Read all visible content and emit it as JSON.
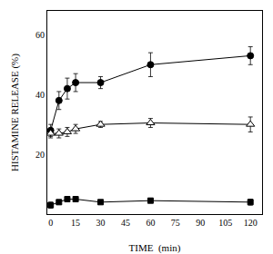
{
  "chart_data": {
    "type": "line",
    "xlabel": "TIME  (min)",
    "ylabel": "HISTAMINE RELEASE (%)",
    "x": [
      0,
      5,
      10,
      15,
      30,
      60,
      120
    ],
    "series": [
      {
        "color": "#000000",
        "marker": "circle",
        "values": [
          28,
          38,
          42,
          44,
          44,
          50,
          53
        ],
        "errors": [
          2,
          3,
          3.5,
          3,
          2,
          4,
          3
        ]
      },
      {
        "color": "#000000",
        "marker": "triangle-open",
        "values": [
          27,
          27,
          27.5,
          28.5,
          30,
          30.5,
          30
        ],
        "errors": [
          1.5,
          1.5,
          1.5,
          1.5,
          1,
          1.5,
          2.5
        ]
      },
      {
        "color": "#000000",
        "marker": "square",
        "values": [
          3,
          4,
          5,
          5,
          4,
          4.5,
          4
        ],
        "errors": [
          1,
          0.5,
          0.8,
          0.8,
          0.5,
          0.5,
          1
        ]
      }
    ],
    "xlim": [
      -2,
      127
    ],
    "ylim": [
      0,
      68
    ],
    "xticks": [
      0,
      15,
      30,
      45,
      60,
      75,
      90,
      105,
      120
    ],
    "yticks": [
      20,
      40,
      60
    ],
    "grid": false
  }
}
